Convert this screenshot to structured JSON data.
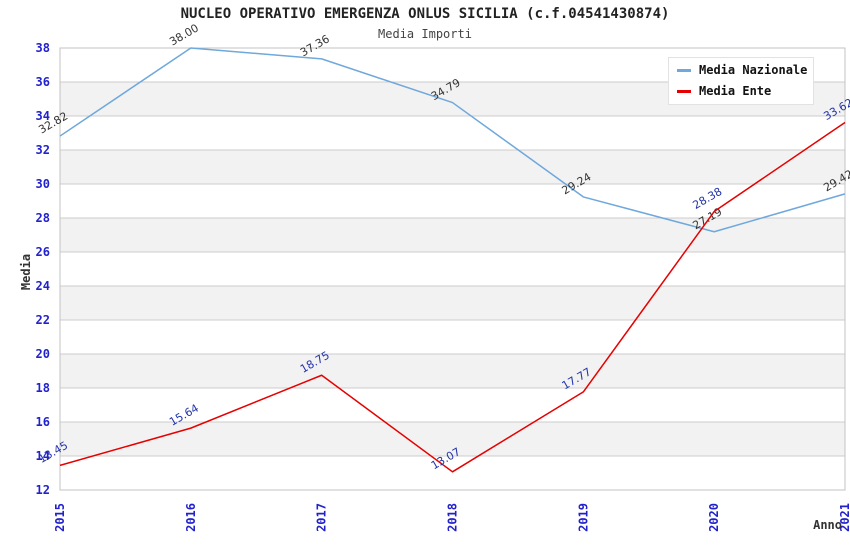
{
  "title": "NUCLEO OPERATIVO EMERGENZA ONLUS SICILIA (c.f.04541430874)",
  "subtitle": "Media Importi",
  "legend": {
    "items": [
      {
        "label": "Media Nazionale",
        "color": "#6FA8DC"
      },
      {
        "label": "Media Ente",
        "color": "#E60000"
      }
    ]
  },
  "chart_data": {
    "type": "line",
    "title": "NUCLEO OPERATIVO EMERGENZA ONLUS SICILIA (c.f.04541430874)",
    "subtitle": "Media Importi",
    "xlabel": "Anno",
    "ylabel": "Media",
    "x": [
      2015,
      2016,
      2017,
      2018,
      2019,
      2020,
      2021
    ],
    "series": [
      {
        "name": "Media Nazionale",
        "color": "#6FA8DC",
        "label_color": "#333333",
        "values": [
          32.82,
          38.0,
          37.36,
          34.79,
          29.24,
          27.19,
          29.42
        ]
      },
      {
        "name": "Media Ente",
        "color": "#E60000",
        "label_color": "#2233AA",
        "values": [
          13.45,
          15.64,
          18.75,
          13.07,
          17.77,
          28.38,
          33.62
        ]
      }
    ],
    "ylim": [
      12,
      38
    ],
    "ytick_step": 2,
    "grid": "horizontal",
    "legend_position": "top-right",
    "band_colors": [
      "#ffffff",
      "#f2f2f2"
    ],
    "gridline_color": "#cccccc",
    "axis_tick_color": "#2222CC",
    "axis_title_color": "#333333",
    "data_label_rotation_deg": -30
  }
}
